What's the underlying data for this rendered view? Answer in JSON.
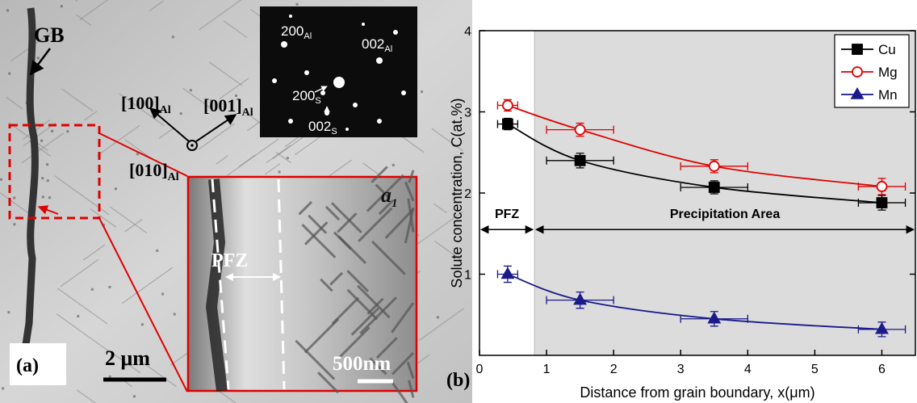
{
  "image": {
    "label": "(a)",
    "gb": "GB",
    "directions": [
      {
        "text": "[100]",
        "sub": "Al"
      },
      {
        "text": "[001]",
        "sub": "Al"
      },
      {
        "text": "[010]",
        "sub": "Al"
      }
    ],
    "diffraction": [
      {
        "text": "200",
        "sub": "Al"
      },
      {
        "text": "002",
        "sub": "Al"
      },
      {
        "text": "200",
        "sub": "S"
      },
      {
        "text": "002",
        "sub": "S"
      }
    ],
    "scale_bar": "2 μm",
    "inset": {
      "label": "a",
      "sub": "1",
      "pfz": "PFZ",
      "scale_bar": "500nm"
    }
  },
  "chart_data": {
    "type": "scatter",
    "panel_label": "(b)",
    "x_label": "Distance from grain boundary, x(μm)",
    "y_label": "Solute concentration, C(at.%)",
    "xlim": [
      0,
      6.5
    ],
    "ylim": [
      0,
      4
    ],
    "xticks": [
      0,
      1,
      2,
      3,
      4,
      5,
      6
    ],
    "yticks": [
      1,
      2,
      3,
      4
    ],
    "x": [
      0.42,
      1.5,
      3.5,
      6
    ],
    "shaded_xrange": [
      0.82,
      6.5
    ],
    "shade_color": "#dcdcdc",
    "regions": [
      {
        "label": "PFZ",
        "x": [
          0,
          0.82
        ]
      },
      {
        "label": "Precipitation Area",
        "x": [
          0.82,
          6.5
        ]
      }
    ],
    "region_y": 1.55,
    "legend": "upper right",
    "series": [
      {
        "name": "Cu",
        "color": "#000000",
        "marker": "square",
        "values": [
          2.85,
          2.4,
          2.07,
          1.88
        ],
        "yerr": [
          0.07,
          0.09,
          0.08,
          0.09
        ],
        "xerr": [
          0.15,
          0.5,
          0.5,
          0.35
        ]
      },
      {
        "name": "Mg",
        "color": "#e00000",
        "marker": "circle",
        "values": [
          3.08,
          2.78,
          2.33,
          2.08
        ],
        "yerr": [
          0.07,
          0.08,
          0.08,
          0.1
        ],
        "xerr": [
          0.15,
          0.5,
          0.5,
          0.35
        ]
      },
      {
        "name": "Mn",
        "color": "#1a1a8c",
        "marker": "triangle",
        "values": [
          1.0,
          0.68,
          0.45,
          0.32
        ],
        "yerr": [
          0.1,
          0.1,
          0.09,
          0.09
        ],
        "xerr": [
          0.15,
          0.5,
          0.5,
          0.35
        ]
      }
    ]
  }
}
